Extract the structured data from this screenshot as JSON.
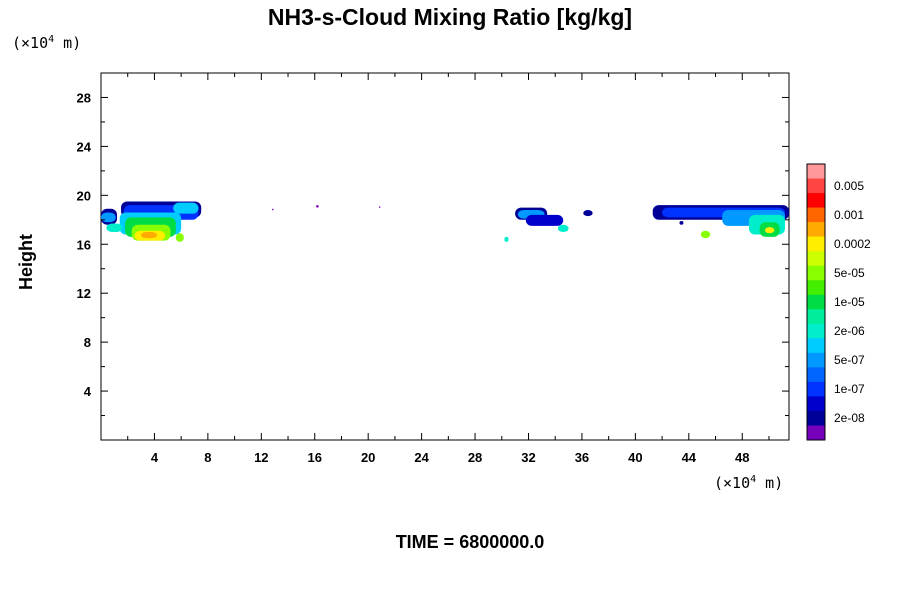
{
  "chart_data": {
    "type": "heatmap",
    "title": "NH3-s-Cloud Mixing Ratio [kg/kg]",
    "xlabel": "",
    "ylabel": "Height",
    "x_unit_prefix": "(×10",
    "x_unit_exp": "4",
    "x_unit_suffix": " m)",
    "y_unit_prefix": "(×10",
    "y_unit_exp": "4",
    "y_unit_suffix": " m)",
    "xlim": [
      0,
      51.5
    ],
    "ylim": [
      0,
      30
    ],
    "x_ticks": [
      4,
      8,
      12,
      16,
      20,
      24,
      28,
      32,
      36,
      40,
      44,
      48
    ],
    "y_ticks": [
      4,
      8,
      12,
      16,
      20,
      24,
      28
    ],
    "colorbar": {
      "labels": [
        "0.005",
        "0.001",
        "0.0002",
        "5e-05",
        "1e-05",
        "2e-06",
        "5e-07",
        "1e-07",
        "2e-08"
      ],
      "colors": [
        "#ff9999",
        "#ff4444",
        "#ff0000",
        "#ff6600",
        "#ffaa00",
        "#ffee00",
        "#ccff00",
        "#88ff00",
        "#44ee00",
        "#00dd44",
        "#00ee99",
        "#00eecc",
        "#00ccff",
        "#0099ff",
        "#0066ff",
        "#0033ff",
        "#0000cc",
        "#000099",
        "#7700bb"
      ]
    },
    "cloud_regions": [
      {
        "name": "left cloud",
        "x_range": [
          0,
          7.5
        ],
        "height_range": [
          16.3,
          19.5
        ],
        "max_level": "0.0002"
      },
      {
        "name": "speck 1",
        "x_range": [
          12.8,
          12.9
        ],
        "height_range": [
          18.8,
          18.9
        ],
        "max_level": "2e-08"
      },
      {
        "name": "speck 2",
        "x_range": [
          16.1,
          16.3
        ],
        "height_range": [
          19.0,
          19.2
        ],
        "max_level": "2e-08"
      },
      {
        "name": "speck 3",
        "x_range": [
          20.8,
          20.9
        ],
        "height_range": [
          19.0,
          19.1
        ],
        "max_level": "2e-08"
      },
      {
        "name": "mid cloud",
        "x_range": [
          30.3,
          35.0
        ],
        "height_range": [
          16.6,
          19.0
        ],
        "max_level": "2e-06"
      },
      {
        "name": "right cloud",
        "x_range": [
          41.3,
          51.5
        ],
        "height_range": [
          16.5,
          19.3
        ],
        "max_level": "5e-05"
      }
    ]
  },
  "footer": {
    "time_label": "TIME = 6800000.0"
  }
}
